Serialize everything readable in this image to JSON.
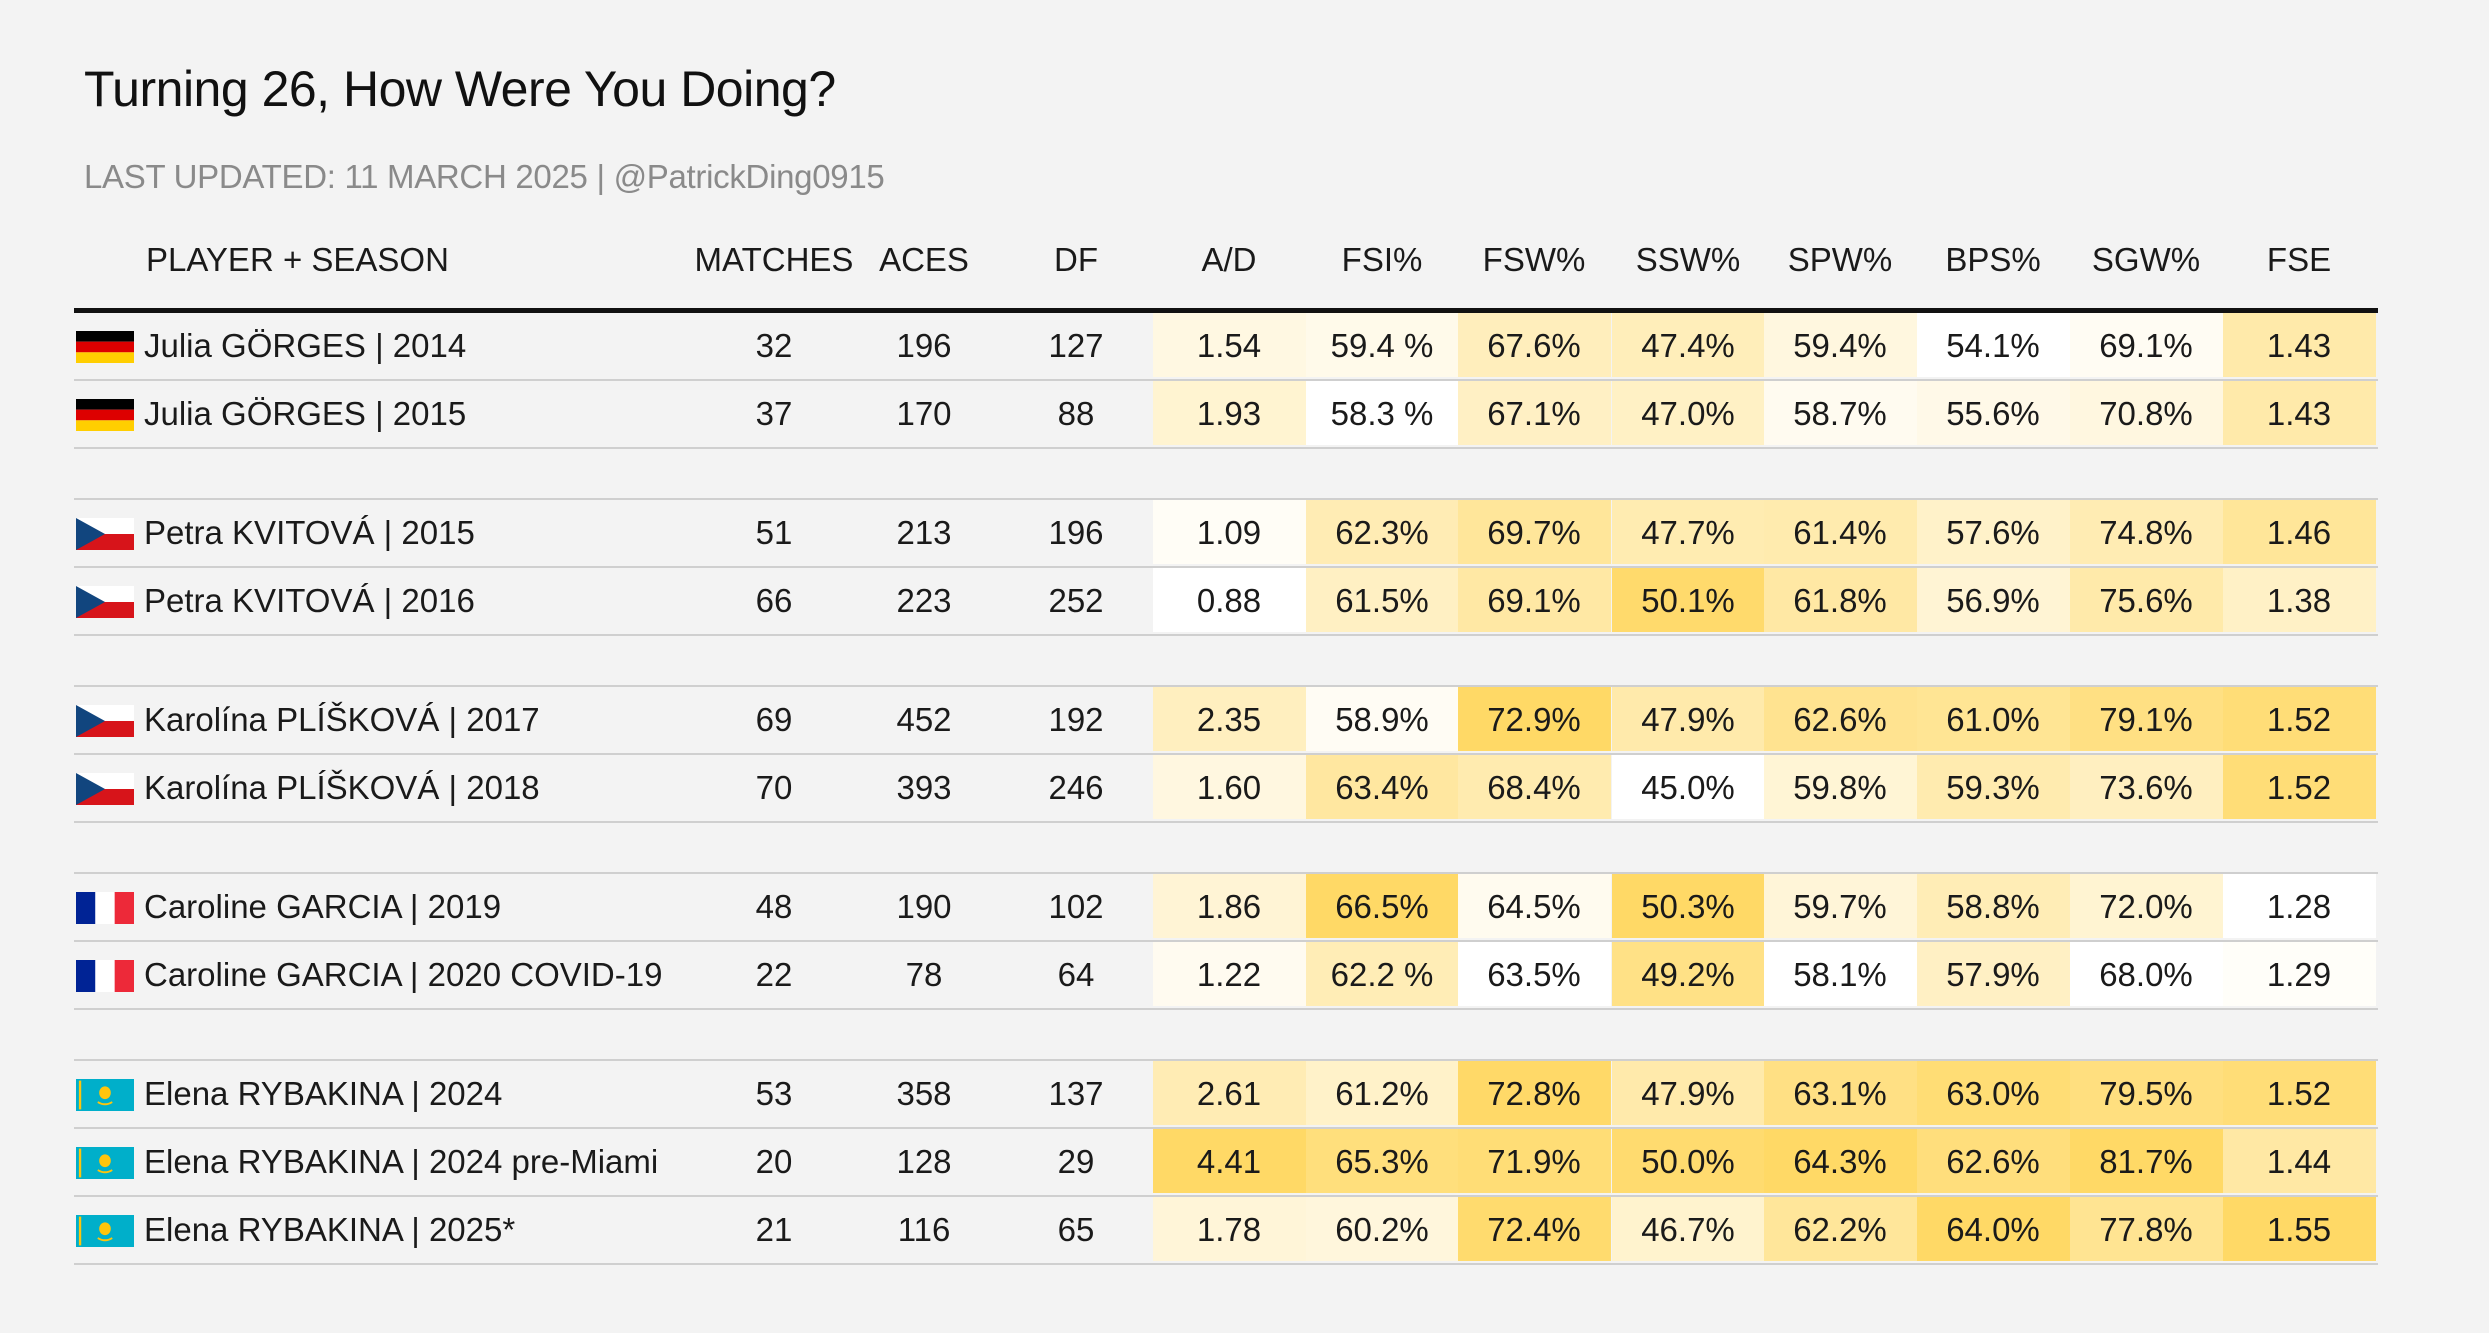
{
  "title": "Turning 26, How Were You Doing?",
  "subtitle": "LAST UPDATED: 11 MARCH 2025 | @PatrickDing0915",
  "chart_data": {
    "type": "table",
    "columns": [
      "PLAYER + SEASON",
      "MATCHES",
      "ACES",
      "DF",
      "A/D",
      "FSI%",
      "FSW%",
      "SSW%",
      "SPW%",
      "BPS%",
      "SGW%",
      "FSE"
    ],
    "groups": [
      {
        "flag": "germany",
        "rows": [
          {
            "player": "Julia GÖRGES | 2014",
            "values": [
              "32",
              "196",
              "127",
              "1.54",
              "59.4 %",
              "67.6%",
              "47.4%",
              "59.4%",
              "54.1%",
              "69.1%",
              "1.43"
            ]
          },
          {
            "player": "Julia GÖRGES | 2015",
            "values": [
              "37",
              "170",
              "88",
              "1.93",
              "58.3 %",
              "67.1%",
              "47.0%",
              "58.7%",
              "55.6%",
              "70.8%",
              "1.43"
            ]
          }
        ]
      },
      {
        "flag": "czech",
        "rows": [
          {
            "player": "Petra KVITOVÁ | 2015",
            "values": [
              "51",
              "213",
              "196",
              "1.09",
              "62.3%",
              "69.7%",
              "47.7%",
              "61.4%",
              "57.6%",
              "74.8%",
              "1.46"
            ]
          },
          {
            "player": "Petra KVITOVÁ | 2016",
            "values": [
              "66",
              "223",
              "252",
              "0.88",
              "61.5%",
              "69.1%",
              "50.1%",
              "61.8%",
              "56.9%",
              "75.6%",
              "1.38"
            ]
          }
        ]
      },
      {
        "flag": "czech",
        "rows": [
          {
            "player": "Karolína PLÍŠKOVÁ | 2017",
            "values": [
              "69",
              "452",
              "192",
              "2.35",
              "58.9%",
              "72.9%",
              "47.9%",
              "62.6%",
              "61.0%",
              "79.1%",
              "1.52"
            ]
          },
          {
            "player": "Karolína PLÍŠKOVÁ | 2018",
            "values": [
              "70",
              "393",
              "246",
              "1.60",
              "63.4%",
              "68.4%",
              "45.0%",
              "59.8%",
              "59.3%",
              "73.6%",
              "1.52"
            ]
          }
        ]
      },
      {
        "flag": "france",
        "rows": [
          {
            "player": "Caroline GARCIA | 2019",
            "values": [
              "48",
              "190",
              "102",
              "1.86",
              "66.5%",
              "64.5%",
              "50.3%",
              "59.7%",
              "58.8%",
              "72.0%",
              "1.28"
            ]
          },
          {
            "player": "Caroline GARCIA | 2020 COVID-19",
            "values": [
              "22",
              "78",
              "64",
              "1.22",
              "62.2 %",
              "63.5%",
              "49.2%",
              "58.1%",
              "57.9%",
              "68.0%",
              "1.29"
            ]
          }
        ]
      },
      {
        "flag": "kazakhstan",
        "rows": [
          {
            "player": "Elena RYBAKINA | 2024",
            "values": [
              "53",
              "358",
              "137",
              "2.61",
              "61.2%",
              "72.8%",
              "47.9%",
              "63.1%",
              "63.0%",
              "79.5%",
              "1.52"
            ]
          },
          {
            "player": "Elena RYBAKINA | 2024 pre-Miami",
            "values": [
              "20",
              "128",
              "29",
              "4.41",
              "65.3%",
              "71.9%",
              "50.0%",
              "64.3%",
              "62.6%",
              "81.7%",
              "1.44"
            ]
          },
          {
            "player": "Elena RYBAKINA | 2025*",
            "values": [
              "21",
              "116",
              "65",
              "1.78",
              "60.2%",
              "72.4%",
              "46.7%",
              "62.2%",
              "64.0%",
              "77.8%",
              "1.55"
            ]
          }
        ]
      }
    ],
    "red_text_rows": [
      "Julia GÖRGES | 2015",
      "Petra KVITOVÁ | 2016",
      "Karolína PLÍŠKOVÁ | 2018",
      "Caroline GARCIA | 2020 COVID-19",
      "Elena RYBAKINA | 2025*"
    ],
    "red_text_color": "#d0141a",
    "heatmap_colors": [
      "#ffffff",
      "#ffd966"
    ]
  }
}
